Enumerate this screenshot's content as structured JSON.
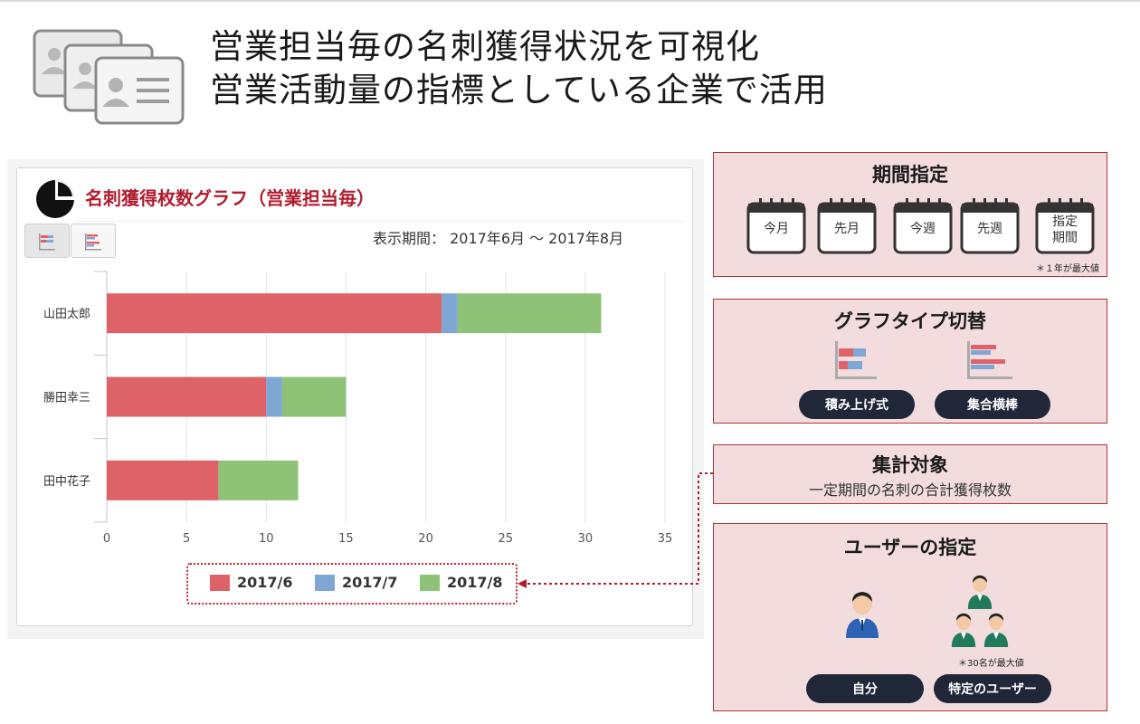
{
  "header": {
    "title_line1": "営業担当毎の名刺獲得状況を可視化",
    "title_line2": "営業活動量の指標としている企業で活用"
  },
  "chart_panel": {
    "title": "名刺獲得枚数グラフ（営業担当毎）",
    "period_label": "表示期間：",
    "period_value": "2017年6月 〜 2017年8月"
  },
  "chart_data": {
    "type": "bar",
    "orientation": "horizontal",
    "stacked": true,
    "categories": [
      "山田太郎",
      "勝田幸三",
      "田中花子"
    ],
    "series": [
      {
        "name": "2017/6",
        "color": "#de6368",
        "values": [
          21,
          10,
          7
        ]
      },
      {
        "name": "2017/7",
        "color": "#7ea7d4",
        "values": [
          1,
          1,
          0
        ]
      },
      {
        "name": "2017/8",
        "color": "#8dc277",
        "values": [
          9,
          4,
          5
        ]
      }
    ],
    "xlim": [
      0,
      35
    ],
    "xticks": [
      "0",
      "5",
      "10",
      "15",
      "20",
      "25",
      "30",
      "35"
    ],
    "grid": true,
    "legend": "bottom"
  },
  "period_box": {
    "title": "期間指定",
    "buttons": [
      "今月",
      "先月",
      "今週",
      "先週",
      "指定\n期間"
    ],
    "note": "＊１年が最大値"
  },
  "graph_type_box": {
    "title": "グラフタイプ切替",
    "buttons": [
      "積み上げ式",
      "集合横棒"
    ]
  },
  "aggregate_box": {
    "title": "集計対象",
    "subtitle": "一定期間の名刺の合計獲得枚数"
  },
  "user_box": {
    "title": "ユーザーの指定",
    "note": "＊30名が最大値",
    "buttons": [
      "自分",
      "特定のユーザー"
    ]
  },
  "colors": {
    "accent": "#b01c2e",
    "box_bg": "#f2dcde",
    "pill": "#1f2738"
  }
}
